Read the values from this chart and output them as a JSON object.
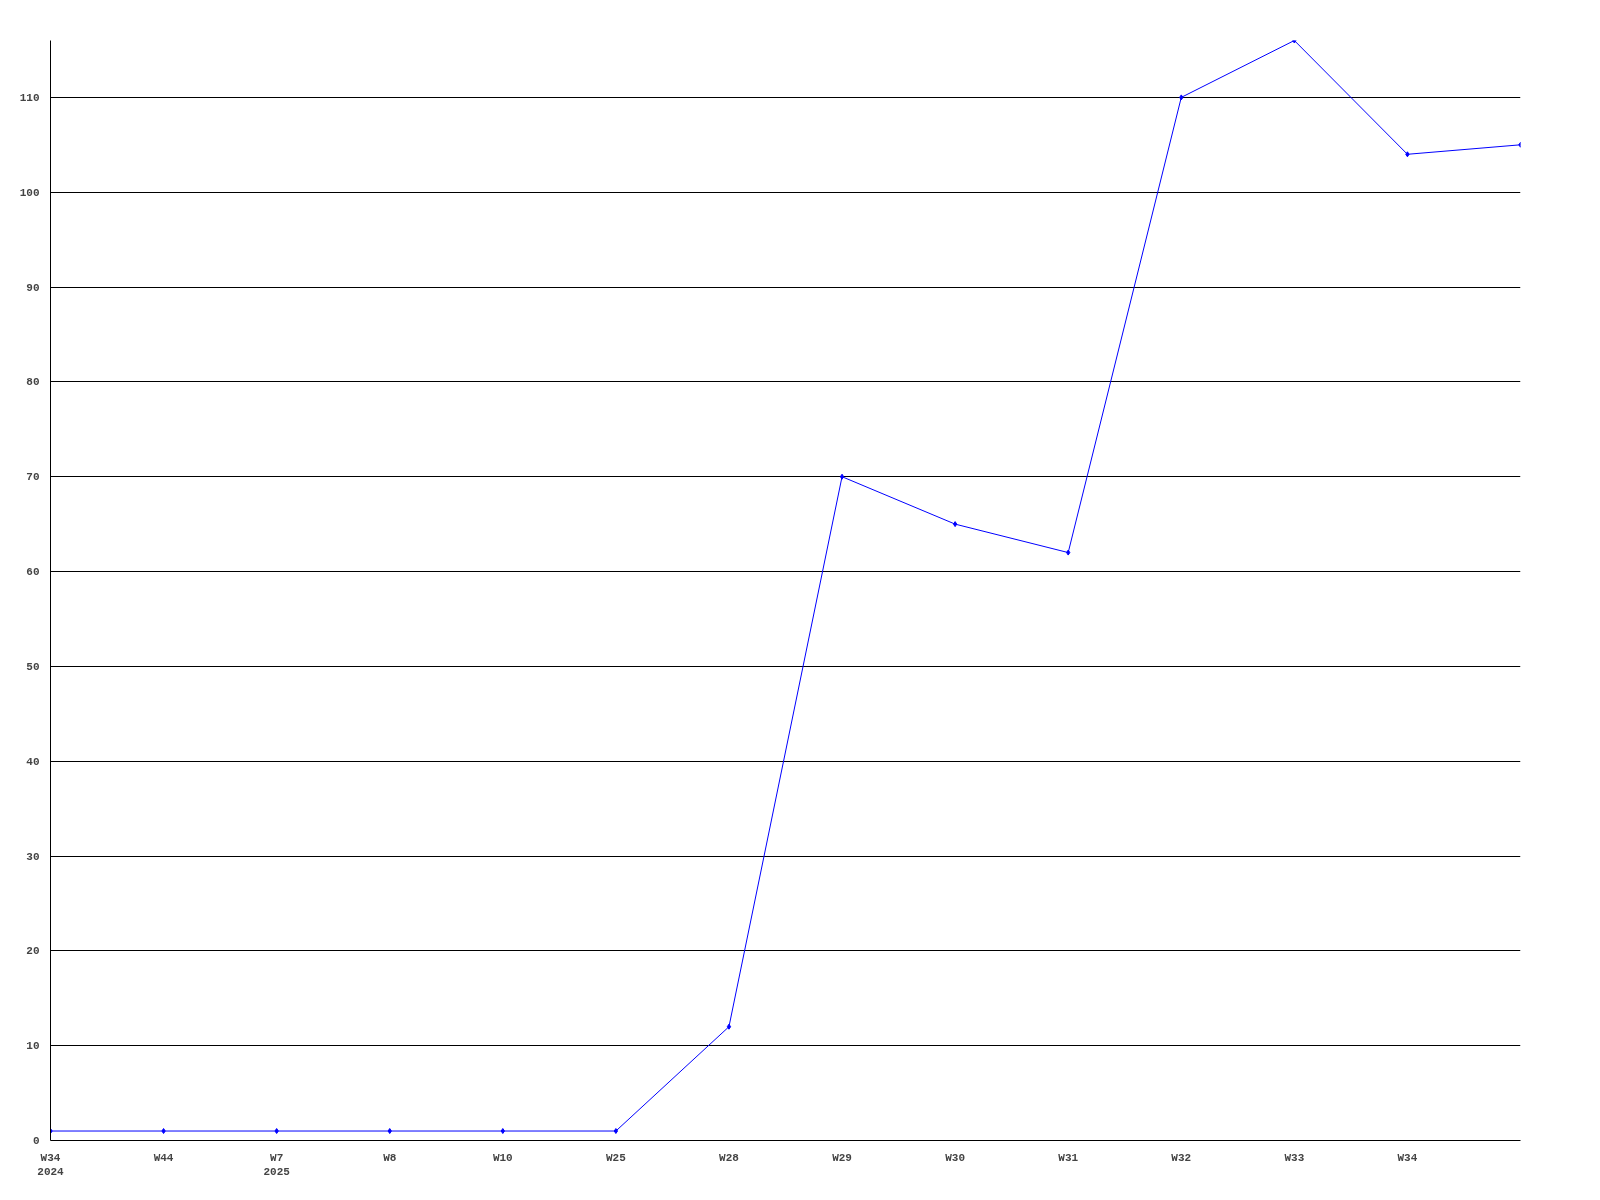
{
  "chart_data": {
    "type": "line",
    "categories": [
      "W34\n2024",
      "W44",
      "W7\n2025",
      "W8",
      "W10",
      "W25",
      "W28",
      "W29",
      "W30",
      "W31",
      "W32",
      "W33",
      "W34",
      null
    ],
    "series": [
      {
        "color": "#0000ff",
        "values": [
          1,
          1,
          1,
          1,
          1,
          1,
          12,
          70,
          65,
          62,
          110,
          116,
          104,
          105
        ]
      }
    ],
    "ylim": [
      0,
      116
    ],
    "yticks": [
      0,
      10,
      20,
      30,
      40,
      50,
      60,
      70,
      80,
      90,
      100,
      110
    ],
    "grid": "y",
    "marker": "diamond",
    "line_style": "solid"
  }
}
